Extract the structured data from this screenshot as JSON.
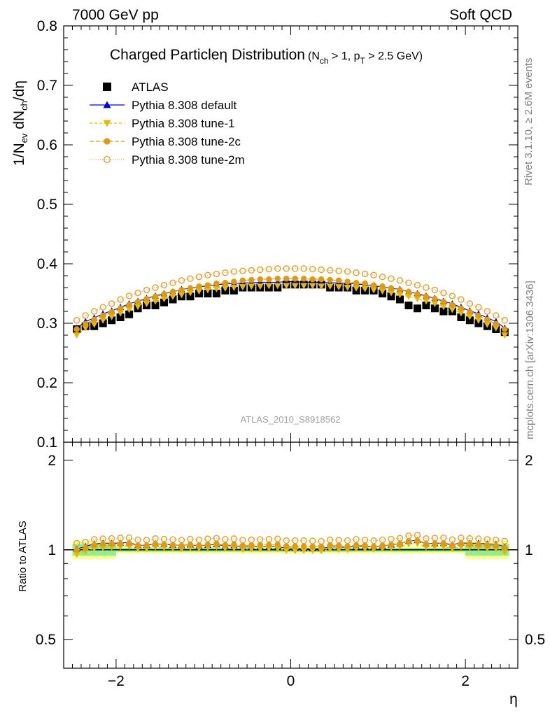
{
  "header": {
    "energy_label": "7000 GeV pp",
    "category_label": "Soft QCD",
    "title_main": "Charged Particle",
    "title_eta": "η",
    "title_tail": " Distribution",
    "title_cond": "(N",
    "title_cond_sub1": "ch",
    "title_cond_mid": " > 1, p",
    "title_cond_sub2": "T",
    "title_cond_end": " > 2.5 GeV)"
  },
  "side_labels": {
    "rivet": "Rivet 3.1.10, ≥ 2.6M events",
    "mcplots": "mcplots.cern.ch [arXiv:1306.3436]"
  },
  "watermark": "ATLAS_2010_S8918562",
  "axes": {
    "y_main_label": {
      "p1": "1/N",
      "s1": "ev",
      "p2": " dN",
      "s2": "ch",
      "p3": "/dη"
    },
    "y_ratio_label": "Ratio to ATLAS",
    "x_label": "η",
    "main_ticks": [
      "0.1",
      "0.2",
      "0.3",
      "0.4",
      "0.5",
      "0.6",
      "0.7",
      "0.8"
    ],
    "ratio_ticks": [
      "0.5",
      "1",
      "2",
      "0.5",
      "1",
      "2"
    ],
    "x_ticks": [
      "−2",
      "0",
      "2"
    ]
  },
  "colors": {
    "atlas": "#000000",
    "default": "#0000cc",
    "tune1": "#e6b800",
    "tune2c": "#e09a10",
    "tune2m": "#e0a030",
    "band_inner": "#90ee90",
    "band_outer": "#ffff90"
  },
  "chart_data": {
    "type": "scatter",
    "x_label": "η",
    "y_label": "1/N_ev dN_ch/dη",
    "ylim": [
      0.1,
      0.8
    ],
    "xlim": [
      -2.6,
      2.6
    ],
    "ratio_ylim": [
      0.4,
      2.3
    ],
    "ratio_log_scale": true,
    "x": [
      -2.45,
      -2.35,
      -2.25,
      -2.15,
      -2.05,
      -1.95,
      -1.85,
      -1.75,
      -1.65,
      -1.55,
      -1.45,
      -1.35,
      -1.25,
      -1.15,
      -1.05,
      -0.95,
      -0.85,
      -0.75,
      -0.65,
      -0.55,
      -0.45,
      -0.35,
      -0.25,
      -0.15,
      -0.05,
      0.05,
      0.15,
      0.25,
      0.35,
      0.45,
      0.55,
      0.65,
      0.75,
      0.85,
      0.95,
      1.05,
      1.15,
      1.25,
      1.35,
      1.45,
      1.55,
      1.65,
      1.75,
      1.85,
      1.95,
      2.05,
      2.15,
      2.25,
      2.35,
      2.45
    ],
    "series": [
      {
        "name": "ATLAS",
        "marker": "square",
        "values": [
          0.29,
          0.295,
          0.295,
          0.3,
          0.305,
          0.31,
          0.315,
          0.325,
          0.33,
          0.33,
          0.335,
          0.34,
          0.345,
          0.345,
          0.35,
          0.35,
          0.35,
          0.355,
          0.355,
          0.36,
          0.36,
          0.36,
          0.36,
          0.36,
          0.365,
          0.365,
          0.365,
          0.365,
          0.365,
          0.36,
          0.36,
          0.36,
          0.355,
          0.355,
          0.355,
          0.35,
          0.345,
          0.34,
          0.33,
          0.325,
          0.33,
          0.325,
          0.32,
          0.32,
          0.31,
          0.305,
          0.3,
          0.295,
          0.29,
          0.285
        ]
      },
      {
        "name": "Pythia 8.308 default",
        "marker": "triangle-up",
        "values": [
          0.292,
          0.303,
          0.309,
          0.316,
          0.321,
          0.327,
          0.333,
          0.337,
          0.342,
          0.346,
          0.35,
          0.353,
          0.357,
          0.359,
          0.361,
          0.363,
          0.365,
          0.366,
          0.367,
          0.368,
          0.368,
          0.369,
          0.369,
          0.369,
          0.37,
          0.37,
          0.369,
          0.369,
          0.369,
          0.368,
          0.368,
          0.367,
          0.366,
          0.365,
          0.363,
          0.361,
          0.359,
          0.357,
          0.353,
          0.35,
          0.346,
          0.342,
          0.337,
          0.333,
          0.327,
          0.321,
          0.316,
          0.309,
          0.303,
          0.292
        ]
      },
      {
        "name": "Pythia 8.308 tune-1",
        "marker": "triangle-down",
        "values": [
          0.28,
          0.292,
          0.298,
          0.305,
          0.311,
          0.317,
          0.323,
          0.328,
          0.333,
          0.337,
          0.341,
          0.345,
          0.348,
          0.351,
          0.354,
          0.356,
          0.358,
          0.359,
          0.36,
          0.361,
          0.362,
          0.362,
          0.363,
          0.363,
          0.363,
          0.363,
          0.363,
          0.363,
          0.362,
          0.362,
          0.361,
          0.36,
          0.359,
          0.358,
          0.356,
          0.354,
          0.351,
          0.348,
          0.345,
          0.341,
          0.337,
          0.333,
          0.328,
          0.323,
          0.317,
          0.311,
          0.305,
          0.298,
          0.292,
          0.28
        ]
      },
      {
        "name": "Pythia 8.308 tune-2c",
        "marker": "circle-filled",
        "values": [
          0.29,
          0.299,
          0.306,
          0.313,
          0.319,
          0.325,
          0.331,
          0.336,
          0.341,
          0.345,
          0.349,
          0.353,
          0.356,
          0.359,
          0.362,
          0.364,
          0.367,
          0.368,
          0.37,
          0.372,
          0.373,
          0.374,
          0.374,
          0.375,
          0.375,
          0.375,
          0.375,
          0.374,
          0.374,
          0.373,
          0.372,
          0.37,
          0.368,
          0.367,
          0.364,
          0.362,
          0.359,
          0.356,
          0.353,
          0.349,
          0.345,
          0.341,
          0.336,
          0.331,
          0.325,
          0.319,
          0.313,
          0.306,
          0.299,
          0.29
        ]
      },
      {
        "name": "Pythia 8.308 tune-2m",
        "marker": "circle-open",
        "values": [
          0.305,
          0.313,
          0.32,
          0.327,
          0.333,
          0.34,
          0.346,
          0.351,
          0.356,
          0.36,
          0.364,
          0.368,
          0.372,
          0.375,
          0.378,
          0.381,
          0.383,
          0.385,
          0.387,
          0.388,
          0.389,
          0.39,
          0.391,
          0.392,
          0.392,
          0.392,
          0.392,
          0.391,
          0.39,
          0.389,
          0.388,
          0.387,
          0.385,
          0.383,
          0.381,
          0.378,
          0.375,
          0.372,
          0.368,
          0.364,
          0.36,
          0.356,
          0.351,
          0.346,
          0.34,
          0.333,
          0.327,
          0.32,
          0.313,
          0.305
        ]
      }
    ]
  }
}
